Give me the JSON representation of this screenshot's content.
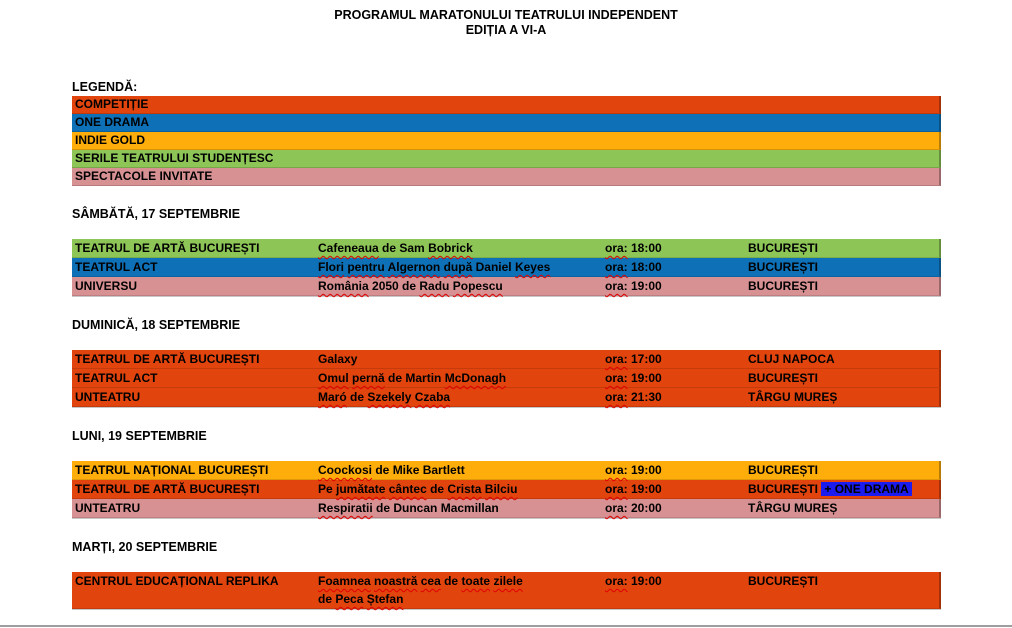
{
  "title": {
    "line1": "PROGRAMUL MARATONULUI TEATRULUI INDEPENDENT",
    "line2": "EDIȚIA A VI-A"
  },
  "colors": {
    "competitie": "#E2440D",
    "one_drama": "#0E71B8",
    "indie_gold": "#FFAD0B",
    "serile_studentesc": "#8DC557",
    "spectacole_invitate": "#D89193",
    "one_drama_highlight": "#1B1BEF",
    "bottom_rule": "#9E9E9E"
  },
  "legend": {
    "label": "LEGENDĂ:",
    "items": [
      {
        "label": "COMPETIȚIE",
        "color": "#E2440D"
      },
      {
        "label": "ONE DRAMA",
        "color": "#0E71B8"
      },
      {
        "label": "INDIE GOLD",
        "color": "#FFAD0B"
      },
      {
        "label": "SERILE TEATRULUI STUDENȚESC",
        "color": "#8DC557"
      },
      {
        "label": "SPECTACOLE INVITATE",
        "color": "#D89193"
      }
    ]
  },
  "sections": [
    {
      "day": "SÂMBĂTĂ, 17 SEPTEMBRIE",
      "rows": [
        {
          "theater": "TEATRUL DE ARTĂ BUCUREȘTI",
          "color": "#8DC557",
          "show": [
            {
              "t": "Cafeneaua",
              "w": true
            },
            {
              "t": " de Sam ",
              "w": false
            },
            {
              "t": "Bobrick",
              "w": true
            }
          ],
          "time": [
            {
              "t": "ora:",
              "w": true
            },
            {
              "t": " 18:00",
              "w": false
            }
          ],
          "city": "BUCUREȘTI"
        },
        {
          "theater": "TEATRUL ACT",
          "color": "#0E71B8",
          "show": [
            {
              "t": "Flori",
              "w": true
            },
            {
              "t": " ",
              "w": false
            },
            {
              "t": "pentru",
              "w": true
            },
            {
              "t": " ",
              "w": false
            },
            {
              "t": "Algernon",
              "w": true
            },
            {
              "t": " ",
              "w": false
            },
            {
              "t": "după",
              "w": true
            },
            {
              "t": " Daniel ",
              "w": false
            },
            {
              "t": "Keyes",
              "w": true
            }
          ],
          "time": [
            {
              "t": "ora:",
              "w": true
            },
            {
              "t": " 18:00",
              "w": false
            }
          ],
          "city": "BUCUREȘTI"
        },
        {
          "theater": "UNIVERSU",
          "color": "#D89193",
          "show": [
            {
              "t": "România",
              "w": true
            },
            {
              "t": " 2050 de ",
              "w": false
            },
            {
              "t": "Radu",
              "w": true
            },
            {
              "t": " ",
              "w": false
            },
            {
              "t": "Popescu",
              "w": true
            }
          ],
          "time": [
            {
              "t": "ora:",
              "w": true
            },
            {
              "t": " 19:00",
              "w": false
            }
          ],
          "city": "BUCUREȘTI"
        }
      ]
    },
    {
      "day": "DUMINICĂ, 18 SEPTEMBRIE",
      "rows": [
        {
          "theater": "TEATRUL DE ARTĂ BUCUREȘTI",
          "color": "#E2440D",
          "show": [
            {
              "t": "Galaxy",
              "w": false
            }
          ],
          "time": [
            {
              "t": "ora:",
              "w": true
            },
            {
              "t": " 17:00",
              "w": false
            }
          ],
          "city": "CLUJ NAPOCA"
        },
        {
          "theater": "TEATRUL ACT",
          "color": "#E2440D",
          "show": [
            {
              "t": "Omul",
              "w": true
            },
            {
              "t": " ",
              "w": false
            },
            {
              "t": "pernă",
              "w": true
            },
            {
              "t": " de Martin ",
              "w": false
            },
            {
              "t": "McDonagh",
              "w": true
            }
          ],
          "time": [
            {
              "t": "ora:",
              "w": true
            },
            {
              "t": " 19:00",
              "w": false
            }
          ],
          "city": "BUCUREȘTI"
        },
        {
          "theater": "UNTEATRU",
          "color": "#E2440D",
          "show": [
            {
              "t": "Maró",
              "w": true
            },
            {
              "t": " de ",
              "w": false
            },
            {
              "t": "Szekely",
              "w": true
            },
            {
              "t": " ",
              "w": false
            },
            {
              "t": "Czaba",
              "w": true
            }
          ],
          "time": [
            {
              "t": "ora:",
              "w": true
            },
            {
              "t": " 21:30",
              "w": false
            }
          ],
          "city": "TÂRGU MUREȘ"
        }
      ]
    },
    {
      "day": "LUNI, 19 SEPTEMBRIE",
      "rows": [
        {
          "theater": "TEATRUL NAȚIONAL BUCUREȘTI",
          "color": "#FFAD0B",
          "show": [
            {
              "t": "Coockosi",
              "w": true
            },
            {
              "t": " de Mike Bartlett",
              "w": false
            }
          ],
          "time": [
            {
              "t": "ora:",
              "w": true
            },
            {
              "t": " 19:00",
              "w": false
            }
          ],
          "city": "BUCUREȘTI"
        },
        {
          "theater": "TEATRUL DE ARTĂ BUCUREȘTI",
          "color": "#E2440D",
          "show": [
            {
              "t": "Pe ",
              "w": false
            },
            {
              "t": "jumătate",
              "w": true
            },
            {
              "t": " ",
              "w": false
            },
            {
              "t": "cântec",
              "w": true
            },
            {
              "t": " de ",
              "w": false
            },
            {
              "t": "Crista",
              "w": true
            },
            {
              "t": " ",
              "w": false
            },
            {
              "t": "Bilciu",
              "w": true
            }
          ],
          "time": [
            {
              "t": "ora:",
              "w": true
            },
            {
              "t": " 19:00",
              "w": false
            }
          ],
          "city": "BUCUREȘTI",
          "tag": {
            "text": "+ ONE DRAMA",
            "bg": "#1B1BEF"
          }
        },
        {
          "theater": "UNTEATRU",
          "color": "#D89193",
          "show": [
            {
              "t": "Respiratii",
              "w": true
            },
            {
              "t": " de Duncan Macmillan",
              "w": false
            }
          ],
          "time": [
            {
              "t": "ora:",
              "w": true
            },
            {
              "t": " 20:00",
              "w": false
            }
          ],
          "city": "TÂRGU MUREȘ"
        }
      ]
    },
    {
      "day": "MARȚI, 20 SEPTEMBRIE",
      "rows": [
        {
          "theater": "CENTRUL EDUCAȚIONAL REPLIKA",
          "color": "#E2440D",
          "show": [
            {
              "t": "Foamnea",
              "w": true
            },
            {
              "t": " ",
              "w": false
            },
            {
              "t": "noastră",
              "w": true
            },
            {
              "t": " ",
              "w": false
            },
            {
              "t": "cea",
              "w": true
            },
            {
              "t": " de ",
              "w": false
            },
            {
              "t": "toate",
              "w": true
            },
            {
              "t": " ",
              "w": false
            },
            {
              "t": "zilele",
              "w": true
            }
          ],
          "show2": [
            {
              "t": "de ",
              "w": false
            },
            {
              "t": "Peca",
              "w": true
            },
            {
              "t": " ",
              "w": false
            },
            {
              "t": "Ștefan",
              "w": true
            }
          ],
          "time": [
            {
              "t": "ora:",
              "w": true
            },
            {
              "t": " 19:00",
              "w": false
            }
          ],
          "city": "BUCUREȘTI"
        }
      ]
    }
  ]
}
